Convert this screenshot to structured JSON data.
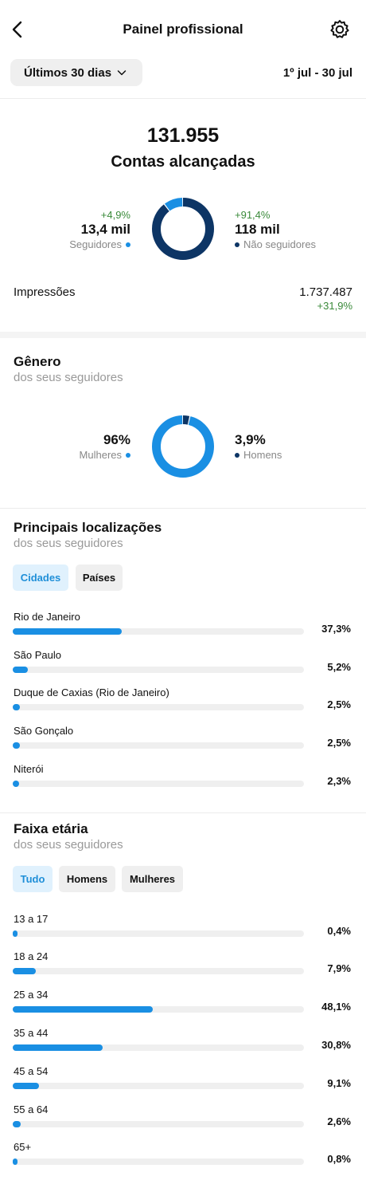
{
  "header": {
    "title": "Painel profissional",
    "back_icon": "chevron-left-icon",
    "settings_icon": "gear-icon"
  },
  "date_range": {
    "selected": "Últimos 30 dias",
    "dates": "1º jul - 30 jul"
  },
  "reach": {
    "total": "131.955",
    "label": "Contas alcançadas",
    "followers": {
      "change": "+4,9%",
      "value": "13,4 mil",
      "label": "Seguidores",
      "share": 0.102
    },
    "non_followers": {
      "change": "+91,4%",
      "value": "118 mil",
      "label": "Não seguidores",
      "share": 0.898
    },
    "impressions_label": "Impressões",
    "impressions_value": "1.737.487",
    "impressions_change": "+31,9%"
  },
  "gender": {
    "title": "Gênero",
    "subtitle": "dos seus seguidores",
    "women": {
      "value": "96%",
      "label": "Mulheres",
      "share": 0.96
    },
    "men": {
      "value": "3,9%",
      "label": "Homens",
      "share": 0.039
    }
  },
  "locations": {
    "title": "Principais localizações",
    "subtitle": "dos seus seguidores",
    "tabs": [
      {
        "label": "Cidades",
        "active": true
      },
      {
        "label": "Países",
        "active": false
      }
    ],
    "items": [
      {
        "label": "Rio de Janeiro",
        "pct": "37,3%",
        "value": 37.3
      },
      {
        "label": "São Paulo",
        "pct": "5,2%",
        "value": 5.2
      },
      {
        "label": "Duque de Caxias (Rio de Janeiro)",
        "pct": "2,5%",
        "value": 2.5
      },
      {
        "label": "São Gonçalo",
        "pct": "2,5%",
        "value": 2.5
      },
      {
        "label": "Niterói",
        "pct": "2,3%",
        "value": 2.3
      }
    ]
  },
  "age": {
    "title": "Faixa etária",
    "subtitle": "dos seus seguidores",
    "tabs": [
      {
        "label": "Tudo",
        "active": true
      },
      {
        "label": "Homens",
        "active": false
      },
      {
        "label": "Mulheres",
        "active": false
      }
    ],
    "items": [
      {
        "label": "13 a 17",
        "pct": "0,4%",
        "value": 0.4
      },
      {
        "label": "18 a 24",
        "pct": "7,9%",
        "value": 7.9
      },
      {
        "label": "25 a 34",
        "pct": "48,1%",
        "value": 48.1
      },
      {
        "label": "35 a 44",
        "pct": "30,8%",
        "value": 30.8
      },
      {
        "label": "45 a 54",
        "pct": "9,1%",
        "value": 9.1
      },
      {
        "label": "55 a 64",
        "pct": "2,6%",
        "value": 2.6
      },
      {
        "label": "65+",
        "pct": "0,8%",
        "value": 0.8
      }
    ]
  },
  "colors": {
    "light_blue": "#1a8fe3",
    "dark_blue": "#0d3565",
    "positive": "#3a8a3a",
    "active_tab_bg": "#e0f1fd",
    "active_tab_text": "#1f8fd8"
  }
}
